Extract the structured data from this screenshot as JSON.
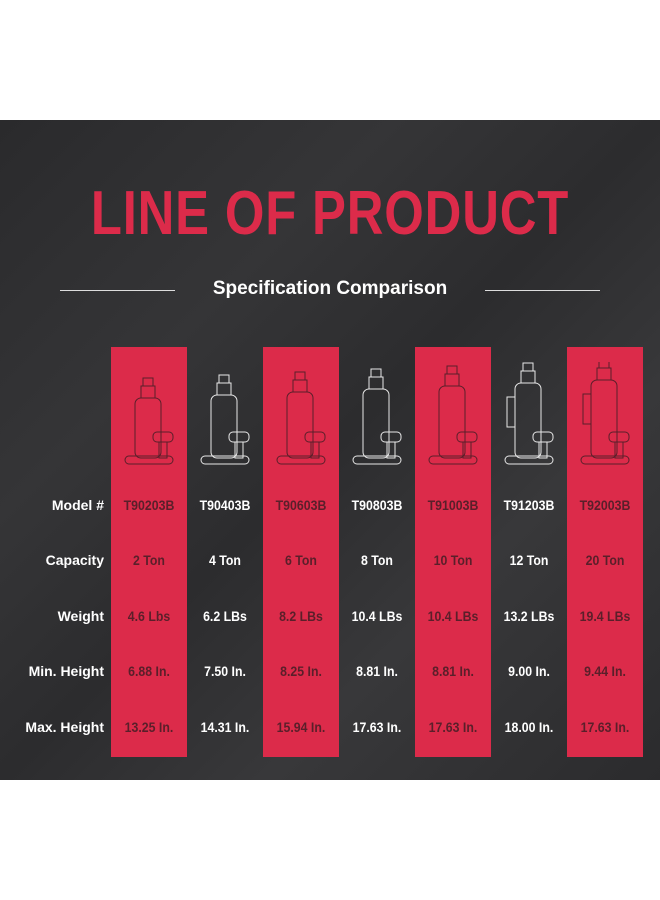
{
  "title": "LINE OF PRODUCT",
  "subtitle": "Specification Comparison",
  "row_labels": [
    "Model #",
    "Capacity",
    "Weight",
    "Min. Height",
    "Max. Height"
  ],
  "products": [
    {
      "model": "T90203B",
      "capacity": "2 Ton",
      "weight": "4.6 Lbs",
      "min": "6.88 In.",
      "max": "13.25 In.",
      "highlight": true
    },
    {
      "model": "T90403B",
      "capacity": "4 Ton",
      "weight": "6.2 LBs",
      "min": "7.50 In.",
      "max": "14.31 In.",
      "highlight": false
    },
    {
      "model": "T90603B",
      "capacity": "6 Ton",
      "weight": "8.2 LBs",
      "min": "8.25 In.",
      "max": "15.94 In.",
      "highlight": true
    },
    {
      "model": "T90803B",
      "capacity": "8 Ton",
      "weight": "10.4 LBs",
      "min": "8.81 In.",
      "max": "17.63 In.",
      "highlight": false
    },
    {
      "model": "T91003B",
      "capacity": "10 Ton",
      "weight": "10.4 LBs",
      "min": "8.81 In.",
      "max": "17.63 In.",
      "highlight": true
    },
    {
      "model": "T91203B",
      "capacity": "12 Ton",
      "weight": "13.2 LBs",
      "min": "9.00 In.",
      "max": "18.00 In.",
      "highlight": false
    },
    {
      "model": "T92003B",
      "capacity": "20 Ton",
      "weight": "19.4 LBs",
      "min": "9.44 In.",
      "max": "17.63 In.",
      "highlight": true
    }
  ],
  "colors": {
    "accent": "#dc2b4a",
    "dark_text": "#5a1f2a",
    "background": "#2f2f31"
  }
}
